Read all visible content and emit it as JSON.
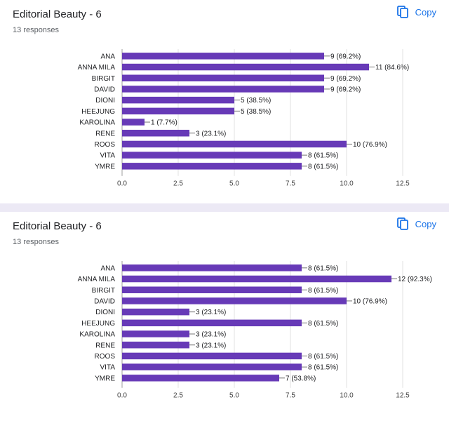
{
  "copy_label": "Copy",
  "colors": {
    "bar": "#673ab7",
    "copy": "#1a73e8"
  },
  "charts": [
    {
      "title": "Editorial Beauty - 6",
      "responses": "13 responses"
    },
    {
      "title": "Editorial Beauty - 6",
      "responses": "13 responses"
    }
  ],
  "chart_data": [
    {
      "type": "bar",
      "orientation": "horizontal",
      "title": "Editorial Beauty - 6",
      "categories": [
        "ANA",
        "ANNA MILA",
        "BIRGIT",
        "DAVID",
        "DIONI",
        "HEEJUNG",
        "KAROLINA",
        "RENE",
        "ROOS",
        "VITA",
        "YMRE"
      ],
      "values": [
        9,
        11,
        9,
        9,
        5,
        5,
        1,
        3,
        10,
        8,
        8
      ],
      "data_labels": [
        "9 (69.2%)",
        "11 (84.6%)",
        "9 (69.2%)",
        "9 (69.2%)",
        "5 (38.5%)",
        "5 (38.5%)",
        "1 (7.7%)",
        "3 (23.1%)",
        "10 (76.9%)",
        "8 (61.5%)",
        "8 (61.5%)"
      ],
      "xlim": [
        0,
        12.5
      ],
      "xticks": [
        "0.0",
        "2.5",
        "5.0",
        "7.5",
        "10.0",
        "12.5"
      ],
      "grid": true
    },
    {
      "type": "bar",
      "orientation": "horizontal",
      "title": "Editorial Beauty - 6",
      "categories": [
        "ANA",
        "ANNA MILA",
        "BIRGIT",
        "DAVID",
        "DIONI",
        "HEEJUNG",
        "KAROLINA",
        "RENE",
        "ROOS",
        "VITA",
        "YMRE"
      ],
      "values": [
        8,
        12,
        8,
        10,
        3,
        8,
        3,
        3,
        8,
        8,
        7
      ],
      "data_labels": [
        "8 (61.5%)",
        "12 (92.3%)",
        "8 (61.5%)",
        "10 (76.9%)",
        "3 (23.1%)",
        "8 (61.5%)",
        "3 (23.1%)",
        "3 (23.1%)",
        "8 (61.5%)",
        "8 (61.5%)",
        "7 (53.8%)"
      ],
      "xlim": [
        0,
        12.5
      ],
      "xticks": [
        "0.0",
        "2.5",
        "5.0",
        "7.5",
        "10.0",
        "12.5"
      ],
      "grid": true
    }
  ]
}
